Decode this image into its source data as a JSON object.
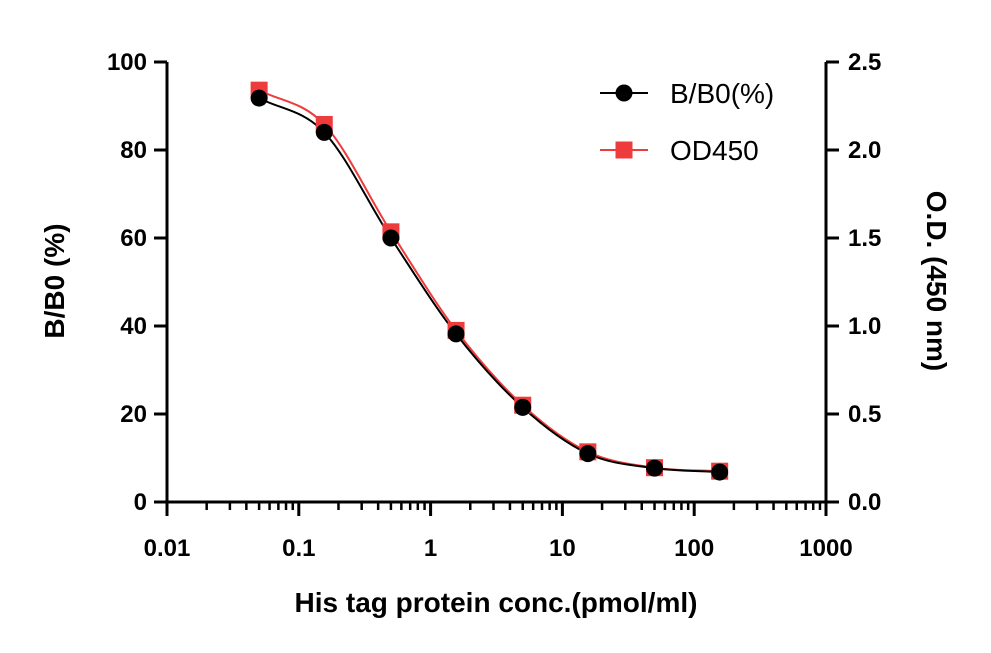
{
  "chart_data": {
    "type": "scatter",
    "title": "",
    "xlabel": "His tag protein conc.(pmol/ml)",
    "ylabel": "B/B0 (%)",
    "y2label": "O.D. (450 nm)",
    "xscale": "log",
    "xlim": [
      0.01,
      1000
    ],
    "ylim": [
      0,
      100
    ],
    "y2lim": [
      0,
      2.5
    ],
    "xticks": [
      "0.01",
      "0.1",
      "1",
      "10",
      "100",
      "1000"
    ],
    "yticks": [
      "0",
      "20",
      "40",
      "60",
      "80",
      "100"
    ],
    "y2ticks": [
      "0.0",
      "0.5",
      "1.0",
      "1.5",
      "2.0",
      "2.5"
    ],
    "grid": false,
    "legend_position": "top-right",
    "x": [
      0.05,
      0.156,
      0.5,
      1.56,
      5,
      15.6,
      50,
      156
    ],
    "series": [
      {
        "name": "B/B0(%)",
        "axis": "left",
        "marker": "circle",
        "color": "#000000",
        "values": [
          91.8,
          84.0,
          60.0,
          38.2,
          21.5,
          11.0,
          7.7,
          6.8
        ]
      },
      {
        "name": "OD450",
        "axis": "right",
        "marker": "square",
        "color": "#ee3b3b",
        "values": [
          2.34,
          2.145,
          1.535,
          0.975,
          0.55,
          0.285,
          0.195,
          0.175
        ]
      }
    ]
  }
}
